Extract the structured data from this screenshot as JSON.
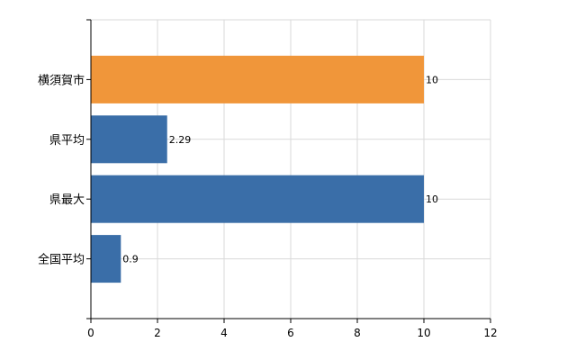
{
  "chart_data": {
    "type": "bar",
    "orientation": "horizontal",
    "categories": [
      "横須賀市",
      "県平均",
      "県最大",
      "全国平均"
    ],
    "values": [
      10,
      2.29,
      10,
      0.9
    ],
    "value_labels": [
      "10",
      "2.29",
      "10",
      "0.9"
    ],
    "colors": [
      "#f0963a",
      "#3a6ea8",
      "#3a6ea8",
      "#3a6ea8"
    ],
    "xlim": [
      0,
      12
    ],
    "xticks": [
      "0",
      "2",
      "4",
      "6",
      "8",
      "10",
      "12"
    ],
    "grid": true,
    "title": "",
    "xlabel": "",
    "ylabel": ""
  }
}
